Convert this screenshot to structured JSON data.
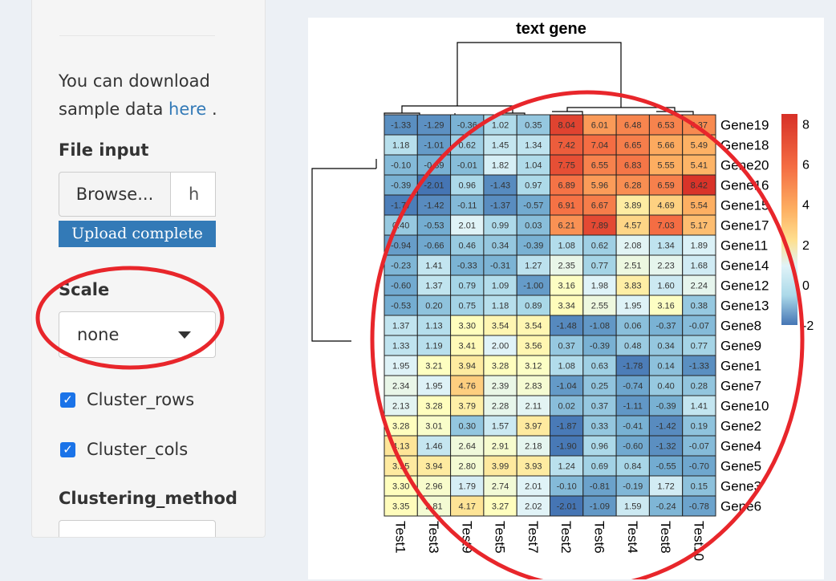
{
  "sidebar": {
    "download_text": "You can download sample data ",
    "download_link": "here",
    "download_end": " .",
    "file_input_label": "File input",
    "browse_label": "Browse...",
    "file_name": "h",
    "progress_text": "Upload complete",
    "scale_label": "Scale",
    "scale_value": "none",
    "cluster_rows_label": "Cluster_rows",
    "cluster_cols_label": "Cluster_cols",
    "clustering_method_label": "Clustering_method"
  },
  "plot": {
    "title": "text gene"
  },
  "colors": {
    "annotation_ellipse": "#e8262b",
    "accent": "#337ab7",
    "checkbox": "#1a73e8"
  },
  "chart_data": {
    "type": "heatmap",
    "title": "text gene",
    "columns": [
      "Test1",
      "Test3",
      "Test9",
      "Test5",
      "Test7",
      "Test2",
      "Test6",
      "Test4",
      "Test8",
      "Test10"
    ],
    "rows": [
      "Gene19",
      "Gene18",
      "Gene20",
      "Gene16",
      "Gene15",
      "Gene17",
      "Gene11",
      "Gene14",
      "Gene12",
      "Gene13",
      "Gene8",
      "Gene9",
      "Gene1",
      "Gene7",
      "Gene10",
      "Gene2",
      "Gene4",
      "Gene5",
      "Gene3",
      "Gene6"
    ],
    "values": [
      [
        -1.33,
        -1.29,
        -0.36,
        1.02,
        0.35,
        8.04,
        6.01,
        6.48,
        6.53,
        6.37
      ],
      [
        1.18,
        -1.01,
        0.62,
        1.45,
        1.34,
        7.42,
        7.04,
        6.65,
        5.66,
        5.49
      ],
      [
        -0.1,
        -0.39,
        -0.01,
        1.82,
        1.04,
        7.75,
        6.55,
        6.83,
        5.55,
        5.41
      ],
      [
        -0.39,
        -2.01,
        0.96,
        -1.43,
        0.97,
        6.89,
        5.96,
        6.28,
        6.59,
        8.42
      ],
      [
        -1.77,
        -1.42,
        -0.11,
        -1.37,
        -0.57,
        6.91,
        6.67,
        3.89,
        4.69,
        5.54
      ],
      [
        0.4,
        -0.53,
        2.01,
        0.99,
        0.03,
        6.21,
        7.89,
        4.57,
        7.03,
        5.17
      ],
      [
        -0.94,
        -0.66,
        0.46,
        0.34,
        -0.39,
        1.08,
        0.62,
        2.08,
        1.34,
        1.89
      ],
      [
        -0.23,
        1.41,
        -0.33,
        -0.31,
        1.27,
        2.35,
        0.77,
        2.51,
        2.23,
        1.68
      ],
      [
        -0.6,
        1.37,
        0.79,
        1.09,
        -1.0,
        3.16,
        1.98,
        3.83,
        1.6,
        2.24
      ],
      [
        -0.53,
        0.2,
        0.75,
        1.18,
        0.89,
        3.34,
        2.55,
        1.95,
        3.16,
        0.38
      ],
      [
        1.37,
        1.13,
        3.3,
        3.54,
        3.54,
        -1.48,
        -1.08,
        0.06,
        -0.37,
        -0.07
      ],
      [
        1.33,
        1.19,
        3.41,
        2.0,
        3.56,
        0.37,
        -0.39,
        0.48,
        0.34,
        0.77
      ],
      [
        1.95,
        3.21,
        3.94,
        3.28,
        3.12,
        1.08,
        0.63,
        -1.78,
        0.14,
        -1.33
      ],
      [
        2.34,
        1.95,
        4.76,
        2.39,
        2.83,
        -1.04,
        0.25,
        -0.74,
        0.4,
        0.28
      ],
      [
        2.13,
        3.28,
        3.79,
        2.28,
        2.11,
        0.02,
        0.37,
        -1.11,
        -0.39,
        1.41
      ],
      [
        3.28,
        3.01,
        0.3,
        1.57,
        3.97,
        -1.87,
        0.33,
        -0.41,
        -1.42,
        0.19
      ],
      [
        4.13,
        1.46,
        2.64,
        2.91,
        2.18,
        -1.9,
        0.96,
        -0.6,
        -1.32,
        -0.07
      ],
      [
        3.95,
        3.94,
        2.8,
        3.99,
        3.93,
        1.24,
        0.69,
        0.84,
        -0.55,
        -0.7
      ],
      [
        3.3,
        2.96,
        1.79,
        2.74,
        2.01,
        -0.1,
        -0.81,
        -0.19,
        1.72,
        0.15
      ],
      [
        3.35,
        2.81,
        4.17,
        3.27,
        2.02,
        -2.01,
        -1.09,
        1.59,
        -0.24,
        -0.78
      ]
    ],
    "legend_ticks": [
      "8",
      "6",
      "4",
      "2",
      "0",
      "-2"
    ],
    "legend_range": [
      -2,
      8.5
    ]
  }
}
